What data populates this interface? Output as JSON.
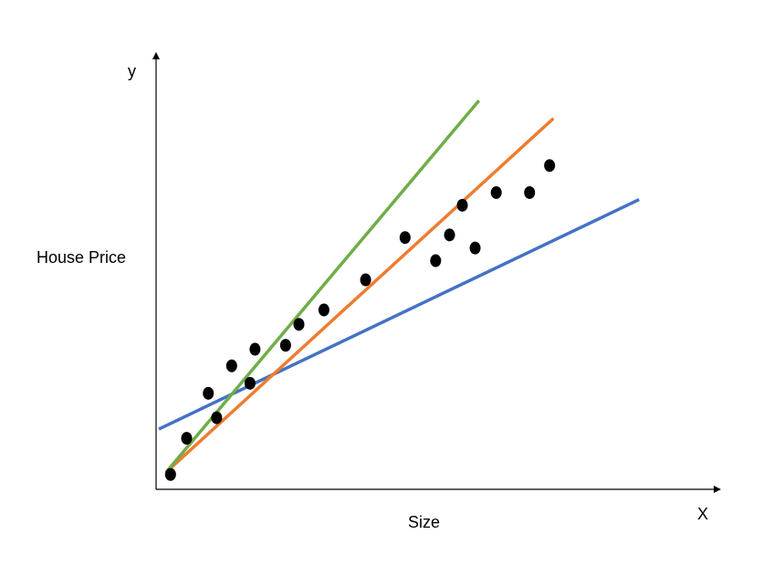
{
  "chart_data": {
    "type": "scatter",
    "axis_letters": {
      "y": "y",
      "x": "X"
    },
    "ylabel": "House Price",
    "xlabel": "Size",
    "xlim": [
      0,
      100
    ],
    "ylim": [
      0,
      100
    ],
    "grid": false,
    "legend": "none",
    "points": [
      {
        "x": 2.6,
        "y": 3.4
      },
      {
        "x": 5.5,
        "y": 11.7
      },
      {
        "x": 9.4,
        "y": 22.0
      },
      {
        "x": 10.9,
        "y": 16.4
      },
      {
        "x": 13.6,
        "y": 28.3
      },
      {
        "x": 16.9,
        "y": 24.3
      },
      {
        "x": 17.8,
        "y": 32.1
      },
      {
        "x": 23.3,
        "y": 33.0
      },
      {
        "x": 25.7,
        "y": 37.8
      },
      {
        "x": 30.2,
        "y": 41.1
      },
      {
        "x": 37.7,
        "y": 48.0
      },
      {
        "x": 44.8,
        "y": 57.7
      },
      {
        "x": 50.3,
        "y": 52.4
      },
      {
        "x": 52.8,
        "y": 58.3
      },
      {
        "x": 55.1,
        "y": 65.1
      },
      {
        "x": 57.4,
        "y": 55.3
      },
      {
        "x": 61.2,
        "y": 68.0
      },
      {
        "x": 67.2,
        "y": 68.0
      },
      {
        "x": 70.8,
        "y": 74.2
      }
    ],
    "lines": [
      {
        "color": "#4472C4",
        "x": [
          0.5,
          86.9
        ],
        "y": [
          13.8,
          66.4
        ]
      },
      {
        "color": "#ED7D31",
        "x": [
          1.8,
          71.5
        ],
        "y": [
          3.9,
          85.0
        ]
      },
      {
        "color": "#70AD47",
        "x": [
          1.8,
          58.1
        ],
        "y": [
          3.9,
          89.1
        ]
      }
    ],
    "colors": {
      "axis": "#000000",
      "points": "#000000"
    }
  }
}
